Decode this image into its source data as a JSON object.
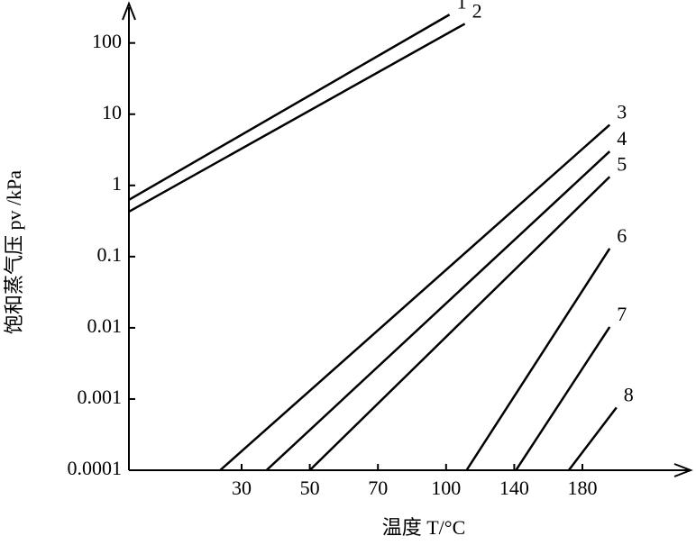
{
  "chart_data": {
    "type": "line",
    "x_label": "温度 T/°C",
    "y_label": "饱和蒸气压 pv /kPa",
    "y_log": true,
    "xlim": [
      -3,
      240
    ],
    "xticks": [
      30,
      50,
      70,
      100,
      140,
      180
    ],
    "ylim": [
      0.0001,
      300
    ],
    "yticks": [
      100,
      10,
      1,
      0.1,
      0.01,
      0.001,
      0.0001
    ],
    "series": [
      {
        "name": "1",
        "color": "#000000",
        "x": [
          -3,
          102
        ],
        "values": [
          0.63,
          250
        ]
      },
      {
        "name": "2",
        "color": "#000000",
        "x": [
          -3,
          111
        ],
        "values": [
          0.43,
          186
        ]
      },
      {
        "name": "3",
        "color": "#000000",
        "x": [
          23.7,
          196
        ],
        "values": [
          0.0001,
          7.1
        ]
      },
      {
        "name": "4",
        "color": "#000000",
        "x": [
          37.3,
          196
        ],
        "values": [
          0.0001,
          3.0
        ]
      },
      {
        "name": "5",
        "color": "#000000",
        "x": [
          50,
          196
        ],
        "values": [
          0.0001,
          1.32
        ]
      },
      {
        "name": "6",
        "color": "#000000",
        "x": [
          112,
          196
        ],
        "values": [
          0.0001,
          0.13
        ]
      },
      {
        "name": "7",
        "color": "#000000",
        "x": [
          141,
          196
        ],
        "values": [
          0.0001,
          0.0103
        ]
      },
      {
        "name": "8",
        "color": "#000000",
        "x": [
          172,
          200
        ],
        "values": [
          0.0001,
          0.00076
        ]
      }
    ]
  }
}
